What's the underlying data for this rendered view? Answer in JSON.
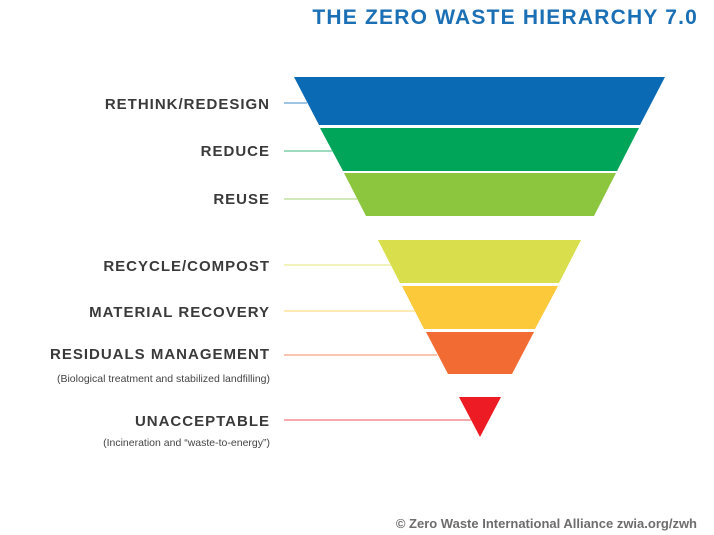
{
  "header": {
    "title": "THE ZERO WASTE HIERARCHY 7.0"
  },
  "levels": [
    {
      "label": "RETHINK/REDESIGN"
    },
    {
      "label": "REDUCE"
    },
    {
      "label": "REUSE"
    },
    {
      "label": "RECYCLE/COMPOST"
    },
    {
      "label": "MATERIAL RECOVERY"
    },
    {
      "label": "RESIDUALS MANAGEMENT",
      "note": "(Biological treatment and stabilized landfilling)"
    },
    {
      "label": "UNACCEPTABLE",
      "note": "(Incineration and “waste-to-energy”)"
    }
  ],
  "footer": {
    "credit": "© Zero Waste International Alliance zwia.org/zwh"
  }
}
